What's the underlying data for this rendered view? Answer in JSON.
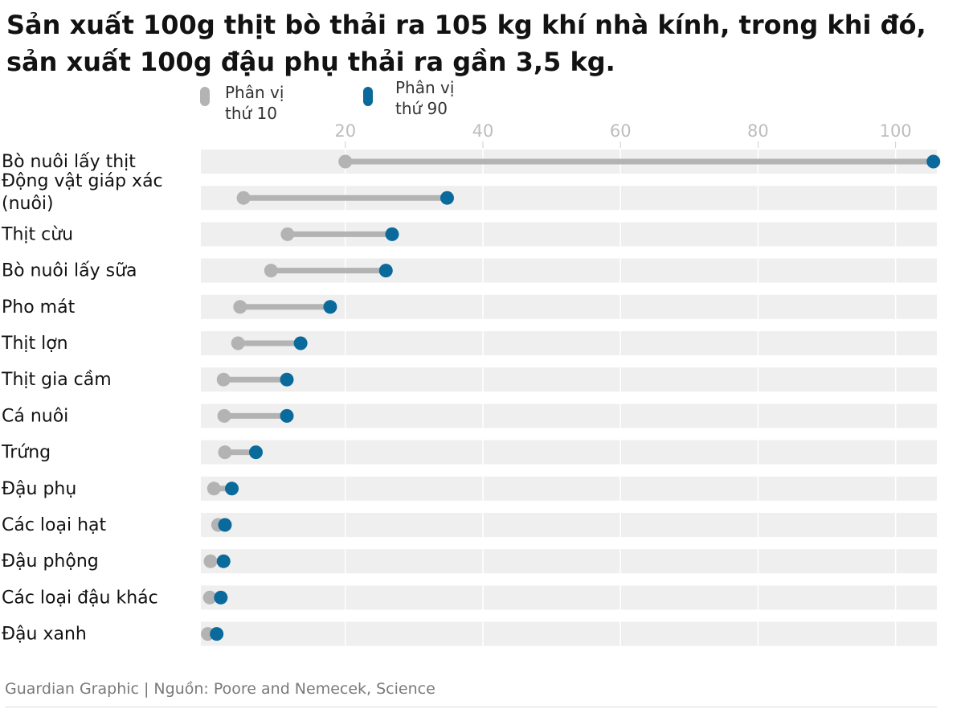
{
  "chart_data": {
    "type": "dumbbell",
    "title_lines": [
      "Sản xuất 100g thịt bò thải ra 105 kg khí nhà kính, trong khi đó,",
      "sản xuất 100g đậu phụ thải ra gần 3,5 kg."
    ],
    "legend": [
      {
        "key": "p10",
        "lines": [
          "Phân vị",
          "thứ 10"
        ],
        "color": "#b3b3b3"
      },
      {
        "key": "p90",
        "lines": [
          "Phân vị",
          "thứ 90"
        ],
        "color": "#0a6a9c"
      }
    ],
    "xlim": [
      -1,
      106
    ],
    "ticks": [
      20,
      40,
      60,
      80,
      100
    ],
    "tick_labels": [
      "20",
      "40",
      "60",
      "80",
      "100"
    ],
    "categories": [
      "Bò nuôi lấy thịt",
      "Động vật giáp xác\n(nuôi)",
      "Thịt cừu",
      "Bò nuôi lấy sữa",
      "Pho mát",
      "Thịt lợn",
      "Thịt gia cầm",
      "Cá nuôi",
      "Trứng",
      "Đậu phụ",
      "Các loại hạt",
      "Đậu phộng",
      "Các loại đậu khác",
      "Đậu xanh"
    ],
    "series": [
      {
        "name": "Phân vị thứ 10",
        "values": [
          20,
          5.2,
          11.6,
          9.2,
          4.7,
          4.4,
          2.3,
          2.4,
          2.5,
          0.9,
          1.5,
          0.4,
          0.3,
          0.0
        ]
      },
      {
        "name": "Phân vị thứ 90",
        "values": [
          105.5,
          34.8,
          26.8,
          25.9,
          17.8,
          13.5,
          11.5,
          11.5,
          7.0,
          3.5,
          2.5,
          2.3,
          1.9,
          1.3
        ]
      }
    ],
    "colors": {
      "p10": "#b3b3b3",
      "p90": "#0a6a9c",
      "band": "#efefef",
      "connector": "#b3b3b3"
    }
  },
  "footer": {
    "source": "Guardian Graphic | Nguồn: Poore and Nemecek, Science"
  }
}
